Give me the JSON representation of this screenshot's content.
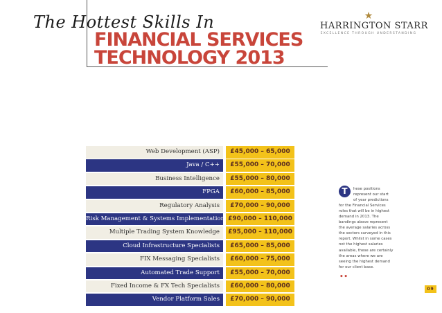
{
  "header": {
    "title_line1": "The Hottest Skills In",
    "title_line2": "FINANCIAL SERVICES",
    "title_line3": "TECHNOLOGY 2013"
  },
  "logo": {
    "name": "HARRINGTON STARR",
    "tagline": "EXCELLENCE THROUGH UNDERSTANDING",
    "icon": "star-icon"
  },
  "skills": [
    {
      "skill": "Web Development (ASP)",
      "salary": "£45,000 – 65,000"
    },
    {
      "skill": "Java / C++",
      "salary": "£55,000 – 70,000"
    },
    {
      "skill": "Business Intelligence",
      "salary": "£55,000 – 80,000"
    },
    {
      "skill": "FPGA",
      "salary": "£60,000 – 85,000"
    },
    {
      "skill": "Regulatory Analysis",
      "salary": "£70,000 – 90,000"
    },
    {
      "skill": "Risk Management & Systems Implementation",
      "salary": "£90,000 – 110,000"
    },
    {
      "skill": "Multiple Trading System Knowledge",
      "salary": "£95,000 – 110,000"
    },
    {
      "skill": "Cloud Infrastructure Specialists",
      "salary": "£65,000 – 85,000"
    },
    {
      "skill": "FIX Messaging Specialists",
      "salary": "£60,000 – 75,000"
    },
    {
      "skill": "Automated Trade Support",
      "salary": "£55,000 – 70,000"
    },
    {
      "skill": "Fixed Income & FX Tech Specialists",
      "salary": "£60,000 – 80,000"
    },
    {
      "skill": "Vendor Platform Sales",
      "salary": "£70,000 – 90,000"
    }
  ],
  "intro": {
    "dropcap": "T",
    "lines": [
      "hese positions",
      "represent our start",
      "of year predictions",
      "for the Financial Services",
      "roles that will be in highest",
      "demand in 2013. The",
      "bandings above represent",
      "the average salaries across",
      "the sectors surveyed in this",
      "report. Whilst in some cases",
      "not the highest salaries",
      "available, these are certainly",
      "the areas where we are",
      "seeing the highest demand",
      "for our client base."
    ],
    "end_mark": "••"
  },
  "page_number": "09",
  "colors": {
    "accent_red": "#c8453a",
    "navy": "#2c3583",
    "gold": "#f3c21a",
    "cream": "#f1eee4"
  }
}
